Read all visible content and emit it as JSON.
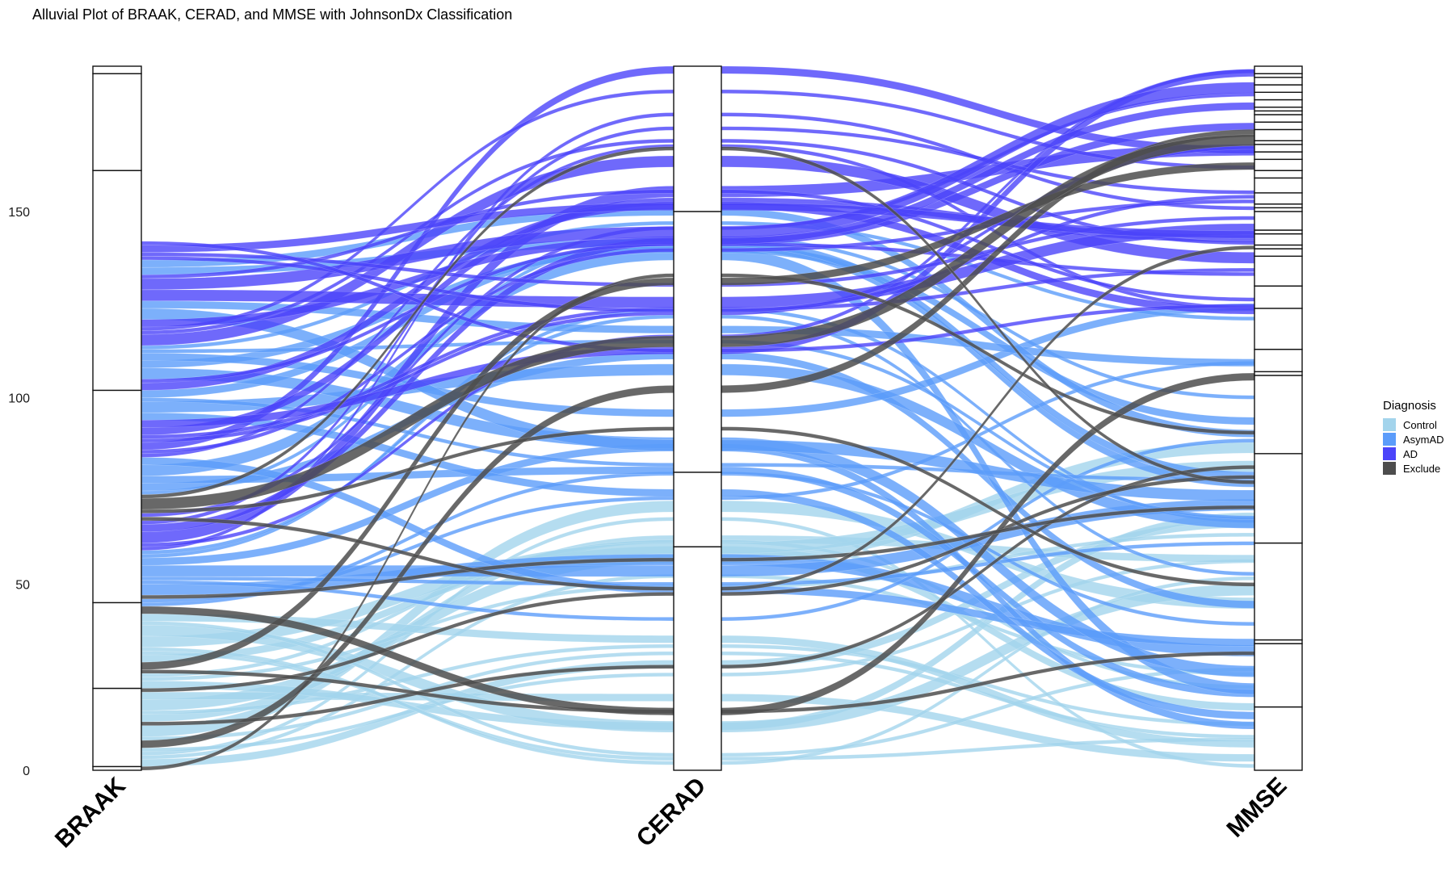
{
  "title": "Alluvial Plot of BRAAK, CERAD, and MMSE with JohnsonDx Classification",
  "legend": {
    "title": "Diagnosis",
    "items": [
      {
        "label": "Control",
        "color": "#A3D4EC"
      },
      {
        "label": "AsymAD",
        "color": "#5B9CFA"
      },
      {
        "label": "AD",
        "color": "#4B44FA"
      },
      {
        "label": "Exclude",
        "color": "#4D4D4D"
      }
    ]
  },
  "chart_data": {
    "type": "alluvial",
    "title": "Alluvial Plot of BRAAK, CERAD, and MMSE with JohnsonDx Classification",
    "xlabel": "",
    "ylabel": "",
    "axes": [
      "BRAAK",
      "CERAD",
      "MMSE"
    ],
    "yticks": [
      0,
      50,
      100,
      150
    ],
    "ylim": [
      0,
      189
    ],
    "total_count": 189,
    "legend_position": "right",
    "fill_by": "Diagnosis",
    "categories": [
      "Control",
      "AsymAD",
      "AD",
      "Exclude"
    ],
    "strata": {
      "BRAAK": [
        {
          "from": 0,
          "to": 1
        },
        {
          "from": 1,
          "to": 22
        },
        {
          "from": 22,
          "to": 45
        },
        {
          "from": 45,
          "to": 102
        },
        {
          "from": 102,
          "to": 161
        },
        {
          "from": 161,
          "to": 187
        },
        {
          "from": 187,
          "to": 189
        }
      ],
      "CERAD": [
        {
          "from": 0,
          "to": 60
        },
        {
          "from": 60,
          "to": 80
        },
        {
          "from": 80,
          "to": 150
        },
        {
          "from": 150,
          "to": 189
        }
      ],
      "MMSE_boundaries": [
        0,
        17,
        34,
        35,
        61,
        85,
        106,
        107,
        113,
        124,
        130,
        138,
        140,
        141,
        144,
        145,
        150,
        151,
        152,
        155,
        159,
        161,
        164,
        166,
        168,
        169,
        172,
        174,
        176,
        177,
        178,
        180,
        182,
        184,
        186,
        187,
        189
      ]
    },
    "flows_at_braak_by_diagnosis": {
      "Control": 62,
      "AsymAD": 60,
      "AD": 45,
      "Exclude": 22
    }
  }
}
